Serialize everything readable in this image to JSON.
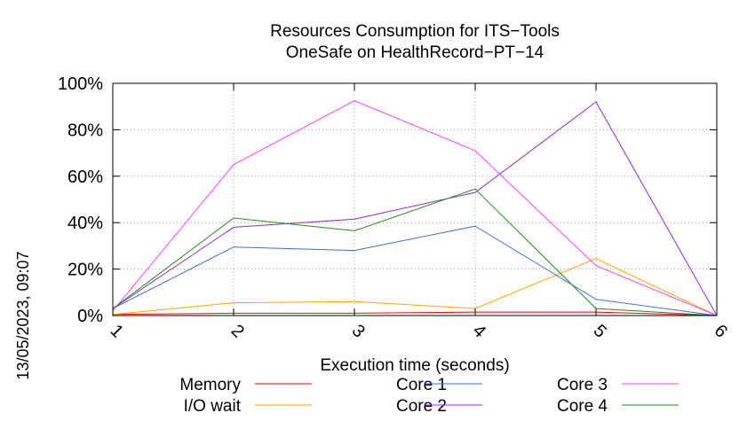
{
  "chart_data": {
    "type": "line",
    "title": "Resources Consumption for ITS−Tools",
    "subtitle": "OneSafe on HealthRecord−PT−14",
    "xlabel": "Execution time (seconds)",
    "ylabel": "",
    "side_label": "13/05/2023, 09:07",
    "x": [
      1,
      2,
      3,
      4,
      5,
      6
    ],
    "x_ticks": [
      "1",
      "2",
      "3",
      "4",
      "5",
      "6"
    ],
    "xlim": [
      1,
      6
    ],
    "ylim": [
      0,
      100
    ],
    "y_ticks": [
      "0%",
      "20%",
      "40%",
      "60%",
      "80%",
      "100%"
    ],
    "y_tick_values": [
      0,
      20,
      40,
      60,
      80,
      100
    ],
    "grid": true,
    "legend_position": "bottom",
    "series": [
      {
        "name": "Memory",
        "color": "#ff0000",
        "values": [
          0.5,
          1,
          1,
          1.5,
          1.5,
          0
        ]
      },
      {
        "name": "I/O wait",
        "color": "#ffa500",
        "values": [
          0.5,
          5.5,
          6,
          3,
          24.5,
          0
        ]
      },
      {
        "name": "Core 1",
        "color": "#4169e1",
        "values": [
          3,
          29.5,
          28,
          38.5,
          7,
          0
        ]
      },
      {
        "name": "Core 2",
        "color": "#8a2be2",
        "values": [
          3,
          38,
          41.5,
          53,
          92,
          0
        ]
      },
      {
        "name": "Core 3",
        "color": "#ff40ff",
        "values": [
          2,
          65,
          92.5,
          71,
          21.5,
          0
        ]
      },
      {
        "name": "Core 4",
        "color": "#228b22",
        "values": [
          3,
          42,
          36.5,
          54.5,
          3,
          0
        ]
      }
    ]
  }
}
